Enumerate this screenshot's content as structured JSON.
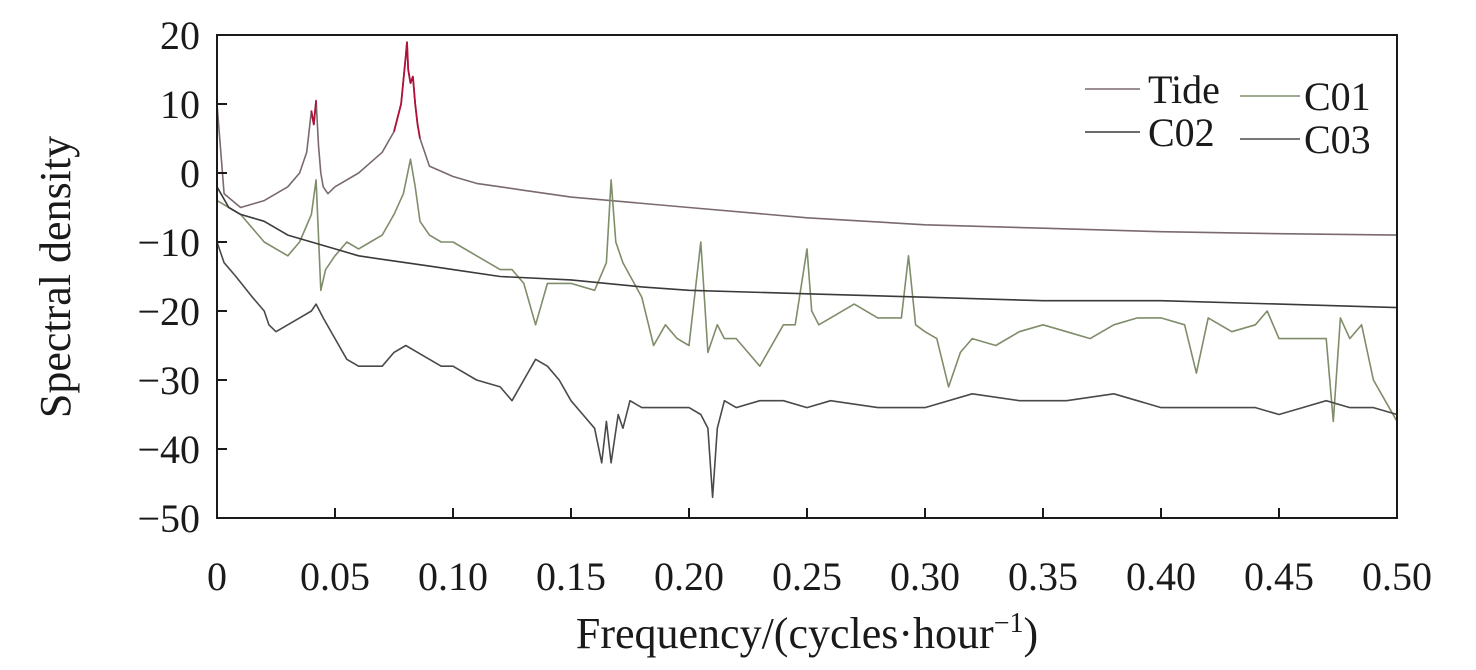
{
  "chart_data": {
    "type": "line",
    "xlabel": "Frequency/(cycles·hour",
    "xlabel_sup": "−1",
    "xlabel_close": ")",
    "ylabel": "Spectral density",
    "xlim": [
      0,
      0.5
    ],
    "ylim": [
      -50,
      20
    ],
    "x_ticks": [
      0,
      0.05,
      0.1,
      0.15,
      0.2,
      0.25,
      0.3,
      0.35,
      0.4,
      0.45,
      0.5
    ],
    "x_tick_labels": [
      "0",
      "0.05",
      "0.10",
      "0.15",
      "0.20",
      "0.25",
      "0.30",
      "0.35",
      "0.40",
      "0.45",
      "0.50"
    ],
    "y_ticks": [
      20,
      10,
      0,
      -10,
      -20,
      -30,
      -40,
      -50
    ],
    "y_tick_labels": [
      "20",
      "10",
      "0",
      "−10",
      "−20",
      "−30",
      "−40",
      "−50"
    ],
    "grid": false,
    "legend_position": "top-right",
    "series": [
      {
        "name": "Tide",
        "color": "#7a6a6e",
        "peak_color": "#b0103a",
        "x": [
          0.0,
          0.003,
          0.01,
          0.02,
          0.03,
          0.035,
          0.038,
          0.04,
          0.041,
          0.042,
          0.043,
          0.044,
          0.045,
          0.047,
          0.05,
          0.06,
          0.07,
          0.075,
          0.078,
          0.08,
          0.0805,
          0.081,
          0.082,
          0.083,
          0.084,
          0.085,
          0.086,
          0.088,
          0.09,
          0.1,
          0.11,
          0.12,
          0.13,
          0.15,
          0.2,
          0.25,
          0.3,
          0.35,
          0.4,
          0.45,
          0.5
        ],
        "y": [
          10,
          -3,
          -5,
          -4,
          -2,
          0,
          3,
          9,
          7,
          10.5,
          4,
          0,
          -2,
          -3,
          -2,
          0,
          3,
          6,
          10,
          17,
          19,
          15,
          13,
          14,
          10,
          7,
          5,
          3,
          1,
          -0.5,
          -1.5,
          -2,
          -2.5,
          -3.5,
          -5,
          -6.5,
          -7.5,
          -8,
          -8.5,
          -8.8,
          -9
        ]
      },
      {
        "name": "C01",
        "color": "#7f8d6a",
        "highlight_color": "#c0c030",
        "x": [
          0.0,
          0.005,
          0.01,
          0.02,
          0.03,
          0.035,
          0.04,
          0.042,
          0.044,
          0.046,
          0.05,
          0.055,
          0.06,
          0.065,
          0.07,
          0.075,
          0.079,
          0.082,
          0.084,
          0.086,
          0.09,
          0.095,
          0.1,
          0.11,
          0.12,
          0.125,
          0.13,
          0.135,
          0.14,
          0.15,
          0.16,
          0.165,
          0.167,
          0.169,
          0.172,
          0.18,
          0.185,
          0.19,
          0.195,
          0.2,
          0.205,
          0.208,
          0.212,
          0.215,
          0.22,
          0.225,
          0.23,
          0.24,
          0.245,
          0.25,
          0.252,
          0.255,
          0.26,
          0.27,
          0.28,
          0.29,
          0.293,
          0.296,
          0.3,
          0.305,
          0.31,
          0.315,
          0.32,
          0.33,
          0.34,
          0.35,
          0.36,
          0.37,
          0.38,
          0.39,
          0.4,
          0.41,
          0.415,
          0.42,
          0.43,
          0.44,
          0.445,
          0.45,
          0.46,
          0.47,
          0.473,
          0.476,
          0.48,
          0.485,
          0.49,
          0.495,
          0.5
        ],
        "y": [
          -4,
          -5,
          -6,
          -10,
          -12,
          -10,
          -6,
          -1,
          -17,
          -14,
          -12,
          -10,
          -11,
          -10,
          -9,
          -6,
          -3,
          2,
          -2,
          -7,
          -9,
          -10,
          -10,
          -12,
          -14,
          -14,
          -16,
          -22,
          -16,
          -16,
          -17,
          -13,
          -1,
          -10,
          -13,
          -18,
          -25,
          -22,
          -24,
          -25,
          -10,
          -26,
          -22,
          -24,
          -24,
          -26,
          -28,
          -22,
          -22,
          -11,
          -20,
          -22,
          -21,
          -19,
          -21,
          -21,
          -12,
          -22,
          -23,
          -24,
          -31,
          -26,
          -24,
          -25,
          -23,
          -22,
          -23,
          -24,
          -22,
          -21,
          -21,
          -22,
          -29,
          -21,
          -23,
          -22,
          -20,
          -24,
          -24,
          -24,
          -36,
          -21,
          -24,
          -22,
          -30,
          -33,
          -36
        ]
      },
      {
        "name": "C02",
        "color": "#3a3a3a",
        "x": [
          0.0,
          0.005,
          0.01,
          0.02,
          0.03,
          0.04,
          0.05,
          0.06,
          0.07,
          0.08,
          0.09,
          0.1,
          0.12,
          0.15,
          0.18,
          0.2,
          0.25,
          0.3,
          0.35,
          0.4,
          0.45,
          0.5
        ],
        "y": [
          -2,
          -5,
          -6,
          -7,
          -9,
          -10,
          -11,
          -12,
          -12.5,
          -13,
          -13.5,
          -14,
          -15,
          -15.5,
          -16.5,
          -17,
          -17.5,
          -18,
          -18.5,
          -18.5,
          -19,
          -19.5
        ]
      },
      {
        "name": "C03",
        "color": "#4a4a4a",
        "x": [
          0.0,
          0.003,
          0.008,
          0.015,
          0.02,
          0.022,
          0.025,
          0.03,
          0.035,
          0.04,
          0.042,
          0.045,
          0.05,
          0.055,
          0.06,
          0.065,
          0.07,
          0.075,
          0.08,
          0.085,
          0.09,
          0.095,
          0.1,
          0.11,
          0.12,
          0.125,
          0.13,
          0.135,
          0.14,
          0.145,
          0.15,
          0.155,
          0.16,
          0.163,
          0.165,
          0.167,
          0.17,
          0.172,
          0.175,
          0.18,
          0.19,
          0.2,
          0.205,
          0.208,
          0.21,
          0.212,
          0.215,
          0.22,
          0.23,
          0.24,
          0.25,
          0.26,
          0.28,
          0.3,
          0.32,
          0.34,
          0.36,
          0.38,
          0.39,
          0.4,
          0.42,
          0.44,
          0.45,
          0.46,
          0.47,
          0.48,
          0.49,
          0.5
        ],
        "y": [
          -10,
          -13,
          -15,
          -18,
          -20,
          -22,
          -23,
          -22,
          -21,
          -20,
          -19,
          -21,
          -24,
          -27,
          -28,
          -28,
          -28,
          -26,
          -25,
          -26,
          -27,
          -28,
          -28,
          -30,
          -31,
          -33,
          -30,
          -27,
          -28,
          -30,
          -33,
          -35,
          -37,
          -42,
          -36,
          -42,
          -35,
          -37,
          -33,
          -34,
          -34,
          -34,
          -35,
          -37,
          -47,
          -37,
          -33,
          -34,
          -33,
          -33,
          -34,
          -33,
          -34,
          -34,
          -32,
          -33,
          -33,
          -32,
          -33,
          -34,
          -34,
          -34,
          -35,
          -34,
          -33,
          -34,
          -34,
          -35
        ]
      }
    ]
  }
}
